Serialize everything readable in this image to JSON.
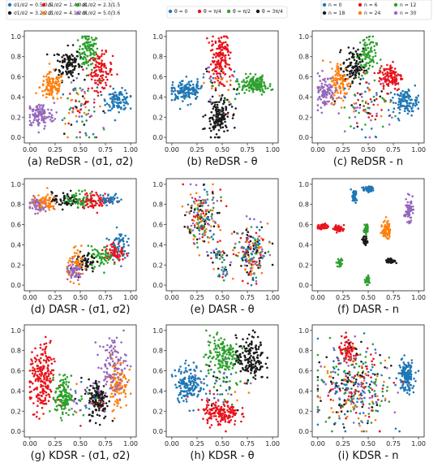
{
  "colors": {
    "blue": "#1f77b4",
    "red": "#e8141c",
    "green": "#2ca02c",
    "orange": "#ff7f0e",
    "black": "#1a1a1a",
    "purple": "#9467bd"
  },
  "legends": {
    "sigma": [
      "σ1/σ2 = 0.5/0.5",
      "σ1/σ2 = 1.4/0.8",
      "σ1/σ2 = 2.3/1.5",
      "σ1/σ2 = 3.2/2.2",
      "σ1/σ2 = 4.1/2.9",
      "σ1/σ2 = 5.0/3.6"
    ],
    "theta": [
      "θ = 0",
      "θ = π/4",
      "θ = π/2",
      "θ = 3π/4"
    ],
    "n": [
      "n = 0",
      "n = 6",
      "n = 12",
      "n = 18",
      "n = 24",
      "n = 30"
    ]
  },
  "chart_data": [
    {
      "type": "scatter",
      "caption": "(a) ReDSR - (σ1, σ2)",
      "xticks": [
        "0.00",
        "0.25",
        "0.50",
        "0.75",
        "1.00"
      ],
      "yticks": [
        "0.0",
        "0.2",
        "0.4",
        "0.6",
        "0.8",
        "1.0"
      ],
      "xlim": [
        0,
        1
      ],
      "ylim": [
        0,
        1
      ],
      "clusters": [
        {
          "color": "green",
          "cx": 0.58,
          "cy": 0.85,
          "sx": 0.05,
          "sy": 0.09,
          "n": 110
        },
        {
          "color": "black",
          "cx": 0.38,
          "cy": 0.73,
          "sx": 0.06,
          "sy": 0.08,
          "n": 110
        },
        {
          "color": "red",
          "cx": 0.7,
          "cy": 0.65,
          "sx": 0.06,
          "sy": 0.09,
          "n": 110
        },
        {
          "color": "orange",
          "cx": 0.22,
          "cy": 0.5,
          "sx": 0.06,
          "sy": 0.07,
          "n": 110
        },
        {
          "color": "blue",
          "cx": 0.88,
          "cy": 0.37,
          "sx": 0.06,
          "sy": 0.05,
          "n": 110
        },
        {
          "color": "purple",
          "cx": 0.1,
          "cy": 0.22,
          "sx": 0.07,
          "sy": 0.06,
          "n": 110
        },
        {
          "color": "mixed",
          "cx": 0.5,
          "cy": 0.3,
          "sx": 0.11,
          "sy": 0.14,
          "n": 90
        }
      ]
    },
    {
      "type": "scatter",
      "caption": "(b) ReDSR - θ",
      "xticks": [
        "0.00",
        "0.25",
        "0.50",
        "0.75",
        "1.00"
      ],
      "yticks": [
        "0.0",
        "0.2",
        "0.4",
        "0.6",
        "0.8",
        "1.0"
      ],
      "xlim": [
        0,
        1
      ],
      "ylim": [
        0,
        1
      ],
      "clusters": [
        {
          "color": "red",
          "cx": 0.48,
          "cy": 0.78,
          "sx": 0.05,
          "sy": 0.12,
          "n": 160
        },
        {
          "color": "blue",
          "cx": 0.14,
          "cy": 0.47,
          "sx": 0.07,
          "sy": 0.05,
          "n": 150
        },
        {
          "color": "green",
          "cx": 0.82,
          "cy": 0.52,
          "sx": 0.07,
          "sy": 0.04,
          "n": 150
        },
        {
          "color": "black",
          "cx": 0.46,
          "cy": 0.2,
          "sx": 0.06,
          "sy": 0.09,
          "n": 150
        },
        {
          "color": "mixed",
          "cx": 0.5,
          "cy": 0.5,
          "sx": 0.1,
          "sy": 0.1,
          "n": 50
        }
      ]
    },
    {
      "type": "scatter",
      "caption": "(c) ReDSR - n",
      "xticks": [
        "0.00",
        "0.25",
        "0.50",
        "0.75",
        "1.00"
      ],
      "yticks": [
        "0.0",
        "0.2",
        "0.4",
        "0.6",
        "0.8",
        "1.0"
      ],
      "xlim": [
        0,
        1
      ],
      "ylim": [
        0,
        1
      ],
      "clusters": [
        {
          "color": "green",
          "cx": 0.48,
          "cy": 0.8,
          "sx": 0.05,
          "sy": 0.11,
          "n": 100
        },
        {
          "color": "black",
          "cx": 0.35,
          "cy": 0.7,
          "sx": 0.05,
          "sy": 0.09,
          "n": 100
        },
        {
          "color": "red",
          "cx": 0.72,
          "cy": 0.6,
          "sx": 0.06,
          "sy": 0.07,
          "n": 110
        },
        {
          "color": "orange",
          "cx": 0.22,
          "cy": 0.55,
          "sx": 0.05,
          "sy": 0.1,
          "n": 100
        },
        {
          "color": "purple",
          "cx": 0.07,
          "cy": 0.46,
          "sx": 0.05,
          "sy": 0.08,
          "n": 100
        },
        {
          "color": "blue",
          "cx": 0.87,
          "cy": 0.35,
          "sx": 0.06,
          "sy": 0.06,
          "n": 110
        },
        {
          "color": "mixed",
          "cx": 0.5,
          "cy": 0.3,
          "sx": 0.13,
          "sy": 0.14,
          "n": 100
        }
      ]
    },
    {
      "type": "scatter",
      "caption": "(d) DASR - (σ1, σ2)",
      "xticks": [
        "0.00",
        "0.25",
        "0.50",
        "0.75",
        "1.00"
      ],
      "yticks": [
        "0.0",
        "0.2",
        "0.4",
        "0.6",
        "0.8",
        "1.0"
      ],
      "xlim": [
        0,
        1
      ],
      "ylim": [
        0,
        1
      ],
      "clusters": [
        {
          "color": "purple",
          "cx": 0.07,
          "cy": 0.8,
          "sx": 0.05,
          "sy": 0.04,
          "n": 60
        },
        {
          "color": "orange",
          "cx": 0.15,
          "cy": 0.82,
          "sx": 0.06,
          "sy": 0.04,
          "n": 60
        },
        {
          "color": "black",
          "cx": 0.36,
          "cy": 0.84,
          "sx": 0.07,
          "sy": 0.04,
          "n": 60
        },
        {
          "color": "green",
          "cx": 0.5,
          "cy": 0.85,
          "sx": 0.07,
          "sy": 0.04,
          "n": 60
        },
        {
          "color": "red",
          "cx": 0.66,
          "cy": 0.84,
          "sx": 0.08,
          "sy": 0.04,
          "n": 70
        },
        {
          "color": "blue",
          "cx": 0.8,
          "cy": 0.85,
          "sx": 0.05,
          "sy": 0.03,
          "n": 40
        },
        {
          "color": "blue",
          "cx": 0.88,
          "cy": 0.4,
          "sx": 0.04,
          "sy": 0.07,
          "n": 60
        },
        {
          "color": "red",
          "cx": 0.84,
          "cy": 0.32,
          "sx": 0.05,
          "sy": 0.05,
          "n": 60
        },
        {
          "color": "green",
          "cx": 0.7,
          "cy": 0.28,
          "sx": 0.06,
          "sy": 0.05,
          "n": 60
        },
        {
          "color": "black",
          "cx": 0.55,
          "cy": 0.22,
          "sx": 0.05,
          "sy": 0.06,
          "n": 60
        },
        {
          "color": "orange",
          "cx": 0.47,
          "cy": 0.2,
          "sx": 0.05,
          "sy": 0.07,
          "n": 60
        },
        {
          "color": "purple",
          "cx": 0.44,
          "cy": 0.13,
          "sx": 0.04,
          "sy": 0.04,
          "n": 50
        }
      ]
    },
    {
      "type": "scatter",
      "caption": "(e) DASR - θ",
      "xticks": [
        "0.00",
        "0.25",
        "0.50",
        "0.75",
        "1.00"
      ],
      "yticks": [
        "0.0",
        "0.2",
        "0.4",
        "0.6",
        "0.8",
        "1.0"
      ],
      "xlim": [
        0,
        1
      ],
      "ylim": [
        0,
        1
      ],
      "clusters": [
        {
          "color": "mixed",
          "cx": 0.3,
          "cy": 0.68,
          "sx": 0.08,
          "sy": 0.14,
          "n": 200
        },
        {
          "color": "mixed",
          "cx": 0.8,
          "cy": 0.32,
          "sx": 0.08,
          "sy": 0.13,
          "n": 200
        },
        {
          "color": "mixed",
          "cx": 0.45,
          "cy": 0.3,
          "sx": 0.05,
          "sy": 0.04,
          "n": 30
        },
        {
          "color": "mixed",
          "cx": 0.5,
          "cy": 0.12,
          "sx": 0.04,
          "sy": 0.03,
          "n": 20
        }
      ]
    },
    {
      "type": "scatter",
      "caption": "(f) DASR - n",
      "xticks": [
        "0.00",
        "0.25",
        "0.50",
        "0.75",
        "1.00"
      ],
      "yticks": [
        "0.0",
        "0.2",
        "0.4",
        "0.6",
        "0.8",
        "1.0"
      ],
      "xlim": [
        0,
        1
      ],
      "ylim": [
        0,
        1
      ],
      "clusters": [
        {
          "color": "blue",
          "cx": 0.36,
          "cy": 0.88,
          "sx": 0.015,
          "sy": 0.03,
          "n": 40
        },
        {
          "color": "blue",
          "cx": 0.5,
          "cy": 0.95,
          "sx": 0.025,
          "sy": 0.015,
          "n": 40
        },
        {
          "color": "purple",
          "cx": 0.9,
          "cy": 0.75,
          "sx": 0.02,
          "sy": 0.06,
          "n": 60
        },
        {
          "color": "red",
          "cx": 0.05,
          "cy": 0.58,
          "sx": 0.025,
          "sy": 0.015,
          "n": 50
        },
        {
          "color": "red",
          "cx": 0.21,
          "cy": 0.56,
          "sx": 0.025,
          "sy": 0.015,
          "n": 50
        },
        {
          "color": "green",
          "cx": 0.48,
          "cy": 0.56,
          "sx": 0.01,
          "sy": 0.025,
          "n": 40
        },
        {
          "color": "orange",
          "cx": 0.68,
          "cy": 0.55,
          "sx": 0.02,
          "sy": 0.05,
          "n": 60
        },
        {
          "color": "black",
          "cx": 0.47,
          "cy": 0.44,
          "sx": 0.012,
          "sy": 0.02,
          "n": 40
        },
        {
          "color": "black",
          "cx": 0.72,
          "cy": 0.24,
          "sx": 0.025,
          "sy": 0.012,
          "n": 40
        },
        {
          "color": "green",
          "cx": 0.22,
          "cy": 0.22,
          "sx": 0.012,
          "sy": 0.02,
          "n": 40
        },
        {
          "color": "green",
          "cx": 0.49,
          "cy": 0.05,
          "sx": 0.012,
          "sy": 0.02,
          "n": 40
        }
      ]
    },
    {
      "type": "scatter",
      "caption": "(g) KDSR - (σ1, σ2)",
      "xticks": [
        "0.00",
        "0.25",
        "0.50",
        "0.75",
        "1.00"
      ],
      "yticks": [
        "0.0",
        "0.2",
        "0.4",
        "0.6",
        "0.8",
        "1.0"
      ],
      "xlim": [
        0,
        1
      ],
      "ylim": [
        0,
        1
      ],
      "clusters": [
        {
          "color": "red",
          "cx": 0.12,
          "cy": 0.5,
          "sx": 0.06,
          "sy": 0.18,
          "n": 220
        },
        {
          "color": "green",
          "cx": 0.33,
          "cy": 0.35,
          "sx": 0.04,
          "sy": 0.1,
          "n": 130
        },
        {
          "color": "black",
          "cx": 0.68,
          "cy": 0.32,
          "sx": 0.05,
          "sy": 0.1,
          "n": 140
        },
        {
          "color": "orange",
          "cx": 0.87,
          "cy": 0.48,
          "sx": 0.05,
          "sy": 0.13,
          "n": 110
        },
        {
          "color": "purple",
          "cx": 0.82,
          "cy": 0.65,
          "sx": 0.07,
          "sy": 0.15,
          "n": 110
        },
        {
          "color": "mixed",
          "cx": 0.5,
          "cy": 0.3,
          "sx": 0.08,
          "sy": 0.1,
          "n": 40
        }
      ]
    },
    {
      "type": "scatter",
      "caption": "(h) KDSR - θ",
      "xticks": [
        "0.00",
        "0.25",
        "0.50",
        "0.75",
        "1.00"
      ],
      "yticks": [
        "0.0",
        "0.2",
        "0.4",
        "0.6",
        "0.8",
        "1.0"
      ],
      "xlim": [
        0,
        1
      ],
      "ylim": [
        0,
        1
      ],
      "clusters": [
        {
          "color": "green",
          "cx": 0.5,
          "cy": 0.75,
          "sx": 0.08,
          "sy": 0.1,
          "n": 160
        },
        {
          "color": "black",
          "cx": 0.78,
          "cy": 0.72,
          "sx": 0.07,
          "sy": 0.11,
          "n": 160
        },
        {
          "color": "blue",
          "cx": 0.17,
          "cy": 0.48,
          "sx": 0.07,
          "sy": 0.09,
          "n": 160
        },
        {
          "color": "red",
          "cx": 0.48,
          "cy": 0.18,
          "sx": 0.09,
          "sy": 0.06,
          "n": 160
        },
        {
          "color": "mixed",
          "cx": 0.5,
          "cy": 0.45,
          "sx": 0.12,
          "sy": 0.12,
          "n": 60
        }
      ]
    },
    {
      "type": "scatter",
      "caption": "(i) KDSR - n",
      "xticks": [
        "0.00",
        "0.25",
        "0.50",
        "0.75",
        "1.00"
      ],
      "yticks": [
        "0.0",
        "0.2",
        "0.4",
        "0.6",
        "0.8",
        "1.0"
      ],
      "xlim": [
        0,
        1
      ],
      "ylim": [
        0,
        1
      ],
      "clusters": [
        {
          "color": "red",
          "cx": 0.3,
          "cy": 0.78,
          "sx": 0.05,
          "sy": 0.06,
          "n": 80
        },
        {
          "color": "blue",
          "cx": 0.88,
          "cy": 0.55,
          "sx": 0.04,
          "sy": 0.08,
          "n": 140
        },
        {
          "color": "mixed",
          "cx": 0.35,
          "cy": 0.42,
          "sx": 0.18,
          "sy": 0.2,
          "n": 380
        }
      ]
    }
  ]
}
